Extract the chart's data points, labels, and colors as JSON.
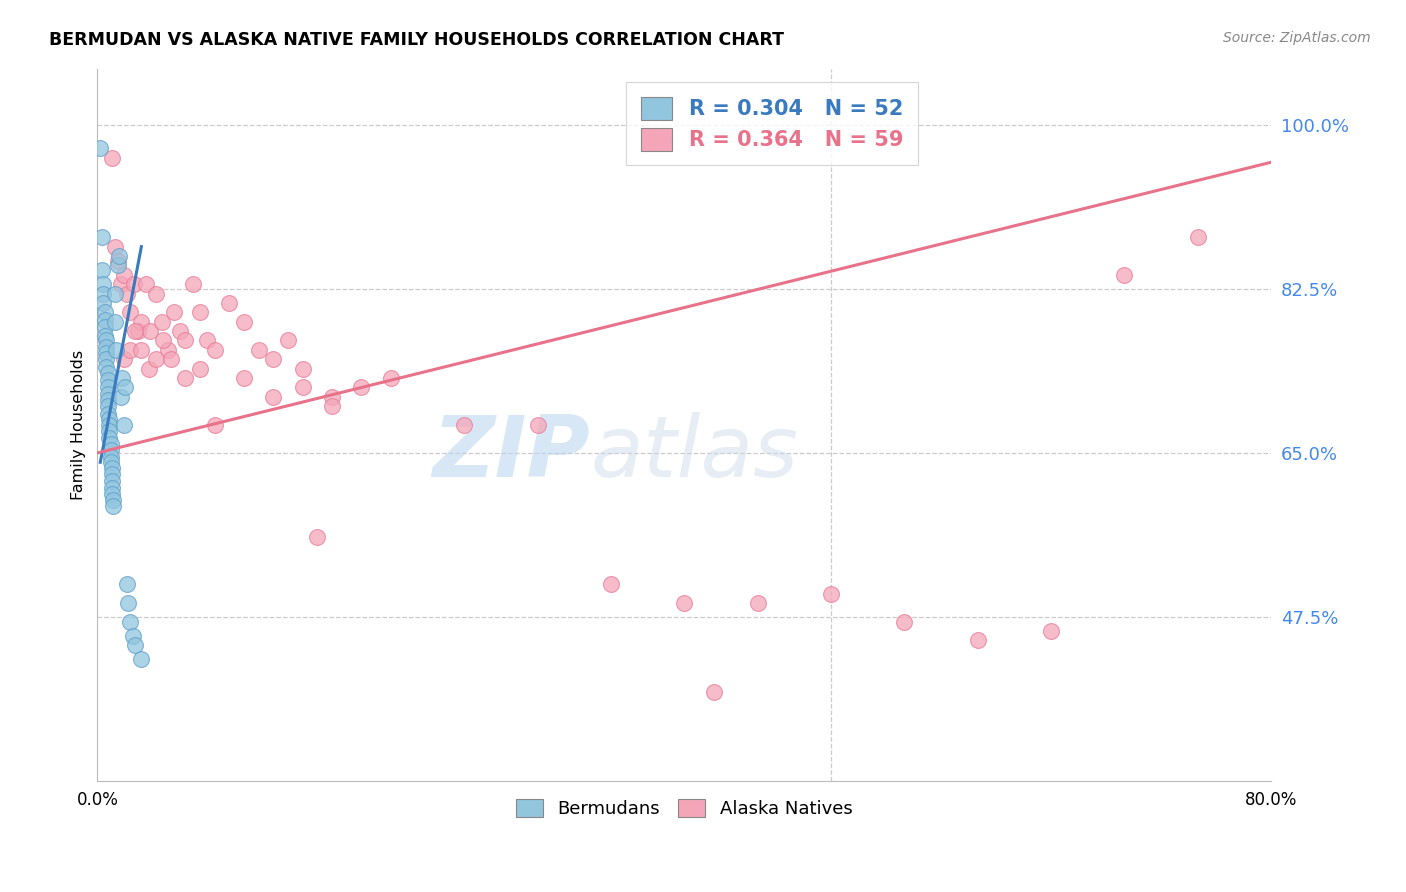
{
  "title": "BERMUDAN VS ALASKA NATIVE FAMILY HOUSEHOLDS CORRELATION CHART",
  "source": "Source: ZipAtlas.com",
  "ylabel": "Family Households",
  "xlim": [
    0.0,
    0.8
  ],
  "ylim": [
    0.3,
    1.06
  ],
  "ytick_labels": [
    "47.5%",
    "65.0%",
    "82.5%",
    "100.0%"
  ],
  "ytick_values": [
    0.475,
    0.65,
    0.825,
    1.0
  ],
  "xtick_labels": [
    "0.0%",
    "",
    "",
    "",
    "",
    "",
    "",
    "",
    "80.0%"
  ],
  "xtick_values": [
    0.0,
    0.1,
    0.2,
    0.3,
    0.4,
    0.5,
    0.6,
    0.7,
    0.8
  ],
  "blue_R": 0.304,
  "blue_N": 52,
  "pink_R": 0.364,
  "pink_N": 59,
  "blue_color": "#92c5de",
  "pink_color": "#f4a6b8",
  "blue_edge_color": "#5b9ec9",
  "pink_edge_color": "#e87a96",
  "blue_line_color": "#3a7bbf",
  "pink_line_color": "#e8728a",
  "watermark_zip": "ZIP",
  "watermark_atlas": "atlas",
  "legend_label_blue": "Bermudans",
  "legend_label_pink": "Alaska Natives",
  "blue_scatter_x": [
    0.002,
    0.003,
    0.003,
    0.004,
    0.004,
    0.004,
    0.005,
    0.005,
    0.005,
    0.005,
    0.006,
    0.006,
    0.006,
    0.006,
    0.006,
    0.007,
    0.007,
    0.007,
    0.007,
    0.007,
    0.007,
    0.007,
    0.008,
    0.008,
    0.008,
    0.008,
    0.009,
    0.009,
    0.009,
    0.009,
    0.01,
    0.01,
    0.01,
    0.01,
    0.01,
    0.011,
    0.011,
    0.012,
    0.012,
    0.013,
    0.014,
    0.015,
    0.016,
    0.017,
    0.018,
    0.019,
    0.02,
    0.021,
    0.022,
    0.024,
    0.026,
    0.03
  ],
  "blue_scatter_y": [
    0.975,
    0.88,
    0.845,
    0.83,
    0.82,
    0.81,
    0.8,
    0.792,
    0.784,
    0.775,
    0.77,
    0.763,
    0.757,
    0.75,
    0.742,
    0.735,
    0.728,
    0.72,
    0.713,
    0.706,
    0.7,
    0.692,
    0.686,
    0.68,
    0.673,
    0.666,
    0.66,
    0.653,
    0.646,
    0.64,
    0.634,
    0.627,
    0.62,
    0.613,
    0.606,
    0.6,
    0.593,
    0.82,
    0.79,
    0.76,
    0.85,
    0.86,
    0.71,
    0.73,
    0.68,
    0.72,
    0.51,
    0.49,
    0.47,
    0.455,
    0.445,
    0.43
  ],
  "pink_scatter_x": [
    0.01,
    0.012,
    0.014,
    0.016,
    0.018,
    0.02,
    0.022,
    0.025,
    0.028,
    0.03,
    0.033,
    0.036,
    0.04,
    0.044,
    0.048,
    0.052,
    0.056,
    0.06,
    0.065,
    0.07,
    0.075,
    0.08,
    0.09,
    0.1,
    0.11,
    0.12,
    0.13,
    0.14,
    0.15,
    0.16,
    0.018,
    0.022,
    0.026,
    0.03,
    0.035,
    0.04,
    0.045,
    0.05,
    0.06,
    0.07,
    0.08,
    0.1,
    0.12,
    0.14,
    0.16,
    0.18,
    0.2,
    0.25,
    0.3,
    0.35,
    0.4,
    0.45,
    0.5,
    0.55,
    0.6,
    0.65,
    0.7,
    0.75,
    0.42
  ],
  "pink_scatter_y": [
    0.965,
    0.87,
    0.855,
    0.83,
    0.84,
    0.82,
    0.8,
    0.83,
    0.78,
    0.79,
    0.83,
    0.78,
    0.82,
    0.79,
    0.76,
    0.8,
    0.78,
    0.77,
    0.83,
    0.8,
    0.77,
    0.76,
    0.81,
    0.79,
    0.76,
    0.75,
    0.77,
    0.74,
    0.56,
    0.71,
    0.75,
    0.76,
    0.78,
    0.76,
    0.74,
    0.75,
    0.77,
    0.75,
    0.73,
    0.74,
    0.68,
    0.73,
    0.71,
    0.72,
    0.7,
    0.72,
    0.73,
    0.68,
    0.68,
    0.51,
    0.49,
    0.49,
    0.5,
    0.47,
    0.45,
    0.46,
    0.84,
    0.88,
    0.395
  ],
  "blue_trendline_x": [
    0.002,
    0.03
  ],
  "blue_trendline_y": [
    0.64,
    0.87
  ],
  "pink_trendline_x": [
    0.0,
    0.8
  ],
  "pink_trendline_y": [
    0.65,
    0.96
  ]
}
